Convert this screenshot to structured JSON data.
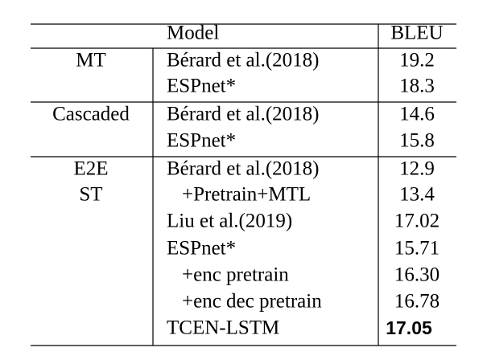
{
  "table": {
    "header": {
      "model": "Model",
      "bleu": "BLEU"
    },
    "groups": [
      {
        "label": [
          "MT"
        ],
        "rows": [
          [
            "Bérard et al.(2018)",
            "19.2"
          ],
          [
            "ESPnet*",
            "18.3"
          ]
        ]
      },
      {
        "label": [
          "Cascaded"
        ],
        "rows": [
          [
            "Bérard et al.(2018)",
            "14.6"
          ],
          [
            "ESPnet*",
            "15.8"
          ]
        ]
      },
      {
        "label": [
          "E2E",
          "ST"
        ],
        "rows": [
          [
            "Bérard et al.(2018)",
            "12.9"
          ],
          [
            "+Pretrain+MTL",
            "13.4"
          ],
          [
            "Liu et al.(2019)",
            "17.02"
          ],
          [
            "ESPnet*",
            "15.71"
          ],
          [
            "+enc pretrain",
            "16.30"
          ],
          [
            "+enc dec pretrain",
            "16.78"
          ],
          [
            "TCEN-LSTM",
            "17.05"
          ]
        ]
      }
    ]
  }
}
